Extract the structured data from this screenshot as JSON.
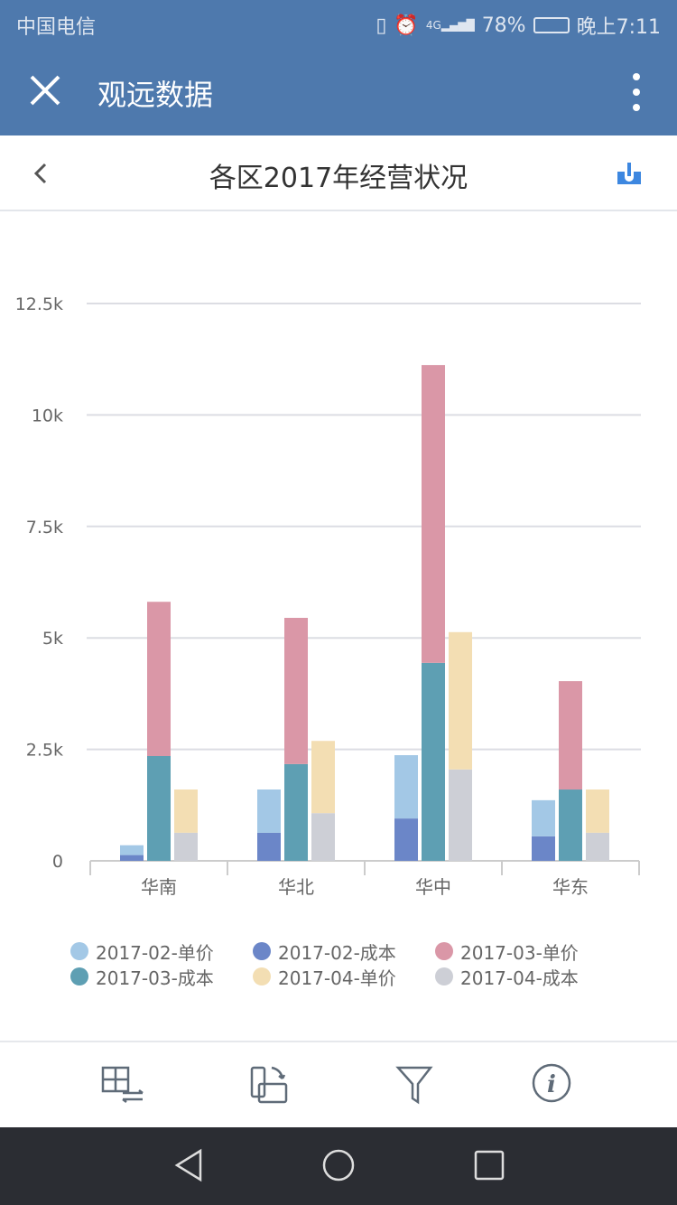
{
  "status": {
    "carrier": "中国电信",
    "battery": "78%",
    "time": "晚上7:11",
    "network": "4G"
  },
  "app": {
    "title": "观远数据"
  },
  "page": {
    "title": "各区2017年经营状况"
  },
  "chart_data": {
    "type": "bar",
    "stacked": true,
    "categories": [
      "华南",
      "华北",
      "华中",
      "华东"
    ],
    "stacks": [
      "2017-02",
      "2017-03",
      "2017-04"
    ],
    "series": [
      {
        "name": "2017-02-成本",
        "stack": "2017-02",
        "color": "#6b86c8",
        "values": [
          130,
          630,
          950,
          550
        ]
      },
      {
        "name": "2017-02-单价",
        "stack": "2017-02",
        "color": "#a3c8e6",
        "values": [
          220,
          970,
          1420,
          810
        ]
      },
      {
        "name": "2017-03-成本",
        "stack": "2017-03",
        "color": "#5e9fb3",
        "values": [
          2350,
          2170,
          4440,
          1600
        ]
      },
      {
        "name": "2017-03-单价",
        "stack": "2017-03",
        "color": "#da97a7",
        "values": [
          3460,
          3280,
          6680,
          2430
        ]
      },
      {
        "name": "2017-04-成本",
        "stack": "2017-04",
        "color": "#cdcfd6",
        "values": [
          630,
          1070,
          2050,
          630
        ]
      },
      {
        "name": "2017-04-单价",
        "stack": "2017-04",
        "color": "#f3deb3",
        "values": [
          970,
          1620,
          3080,
          970
        ]
      }
    ],
    "ylim": [
      0,
      12500
    ],
    "yticks": [
      "0",
      "2.5k",
      "5k",
      "7.5k",
      "10k",
      "12.5k"
    ],
    "grid": true,
    "legend": "bottom"
  },
  "legend": [
    {
      "label": "2017-02-单价",
      "color": "#a3c8e6"
    },
    {
      "label": "2017-02-成本",
      "color": "#6b86c8"
    },
    {
      "label": "2017-03-单价",
      "color": "#da97a7"
    },
    {
      "label": "2017-03-成本",
      "color": "#5e9fb3"
    },
    {
      "label": "2017-04-单价",
      "color": "#f3deb3"
    },
    {
      "label": "2017-04-成本",
      "color": "#cdcfd6"
    }
  ]
}
